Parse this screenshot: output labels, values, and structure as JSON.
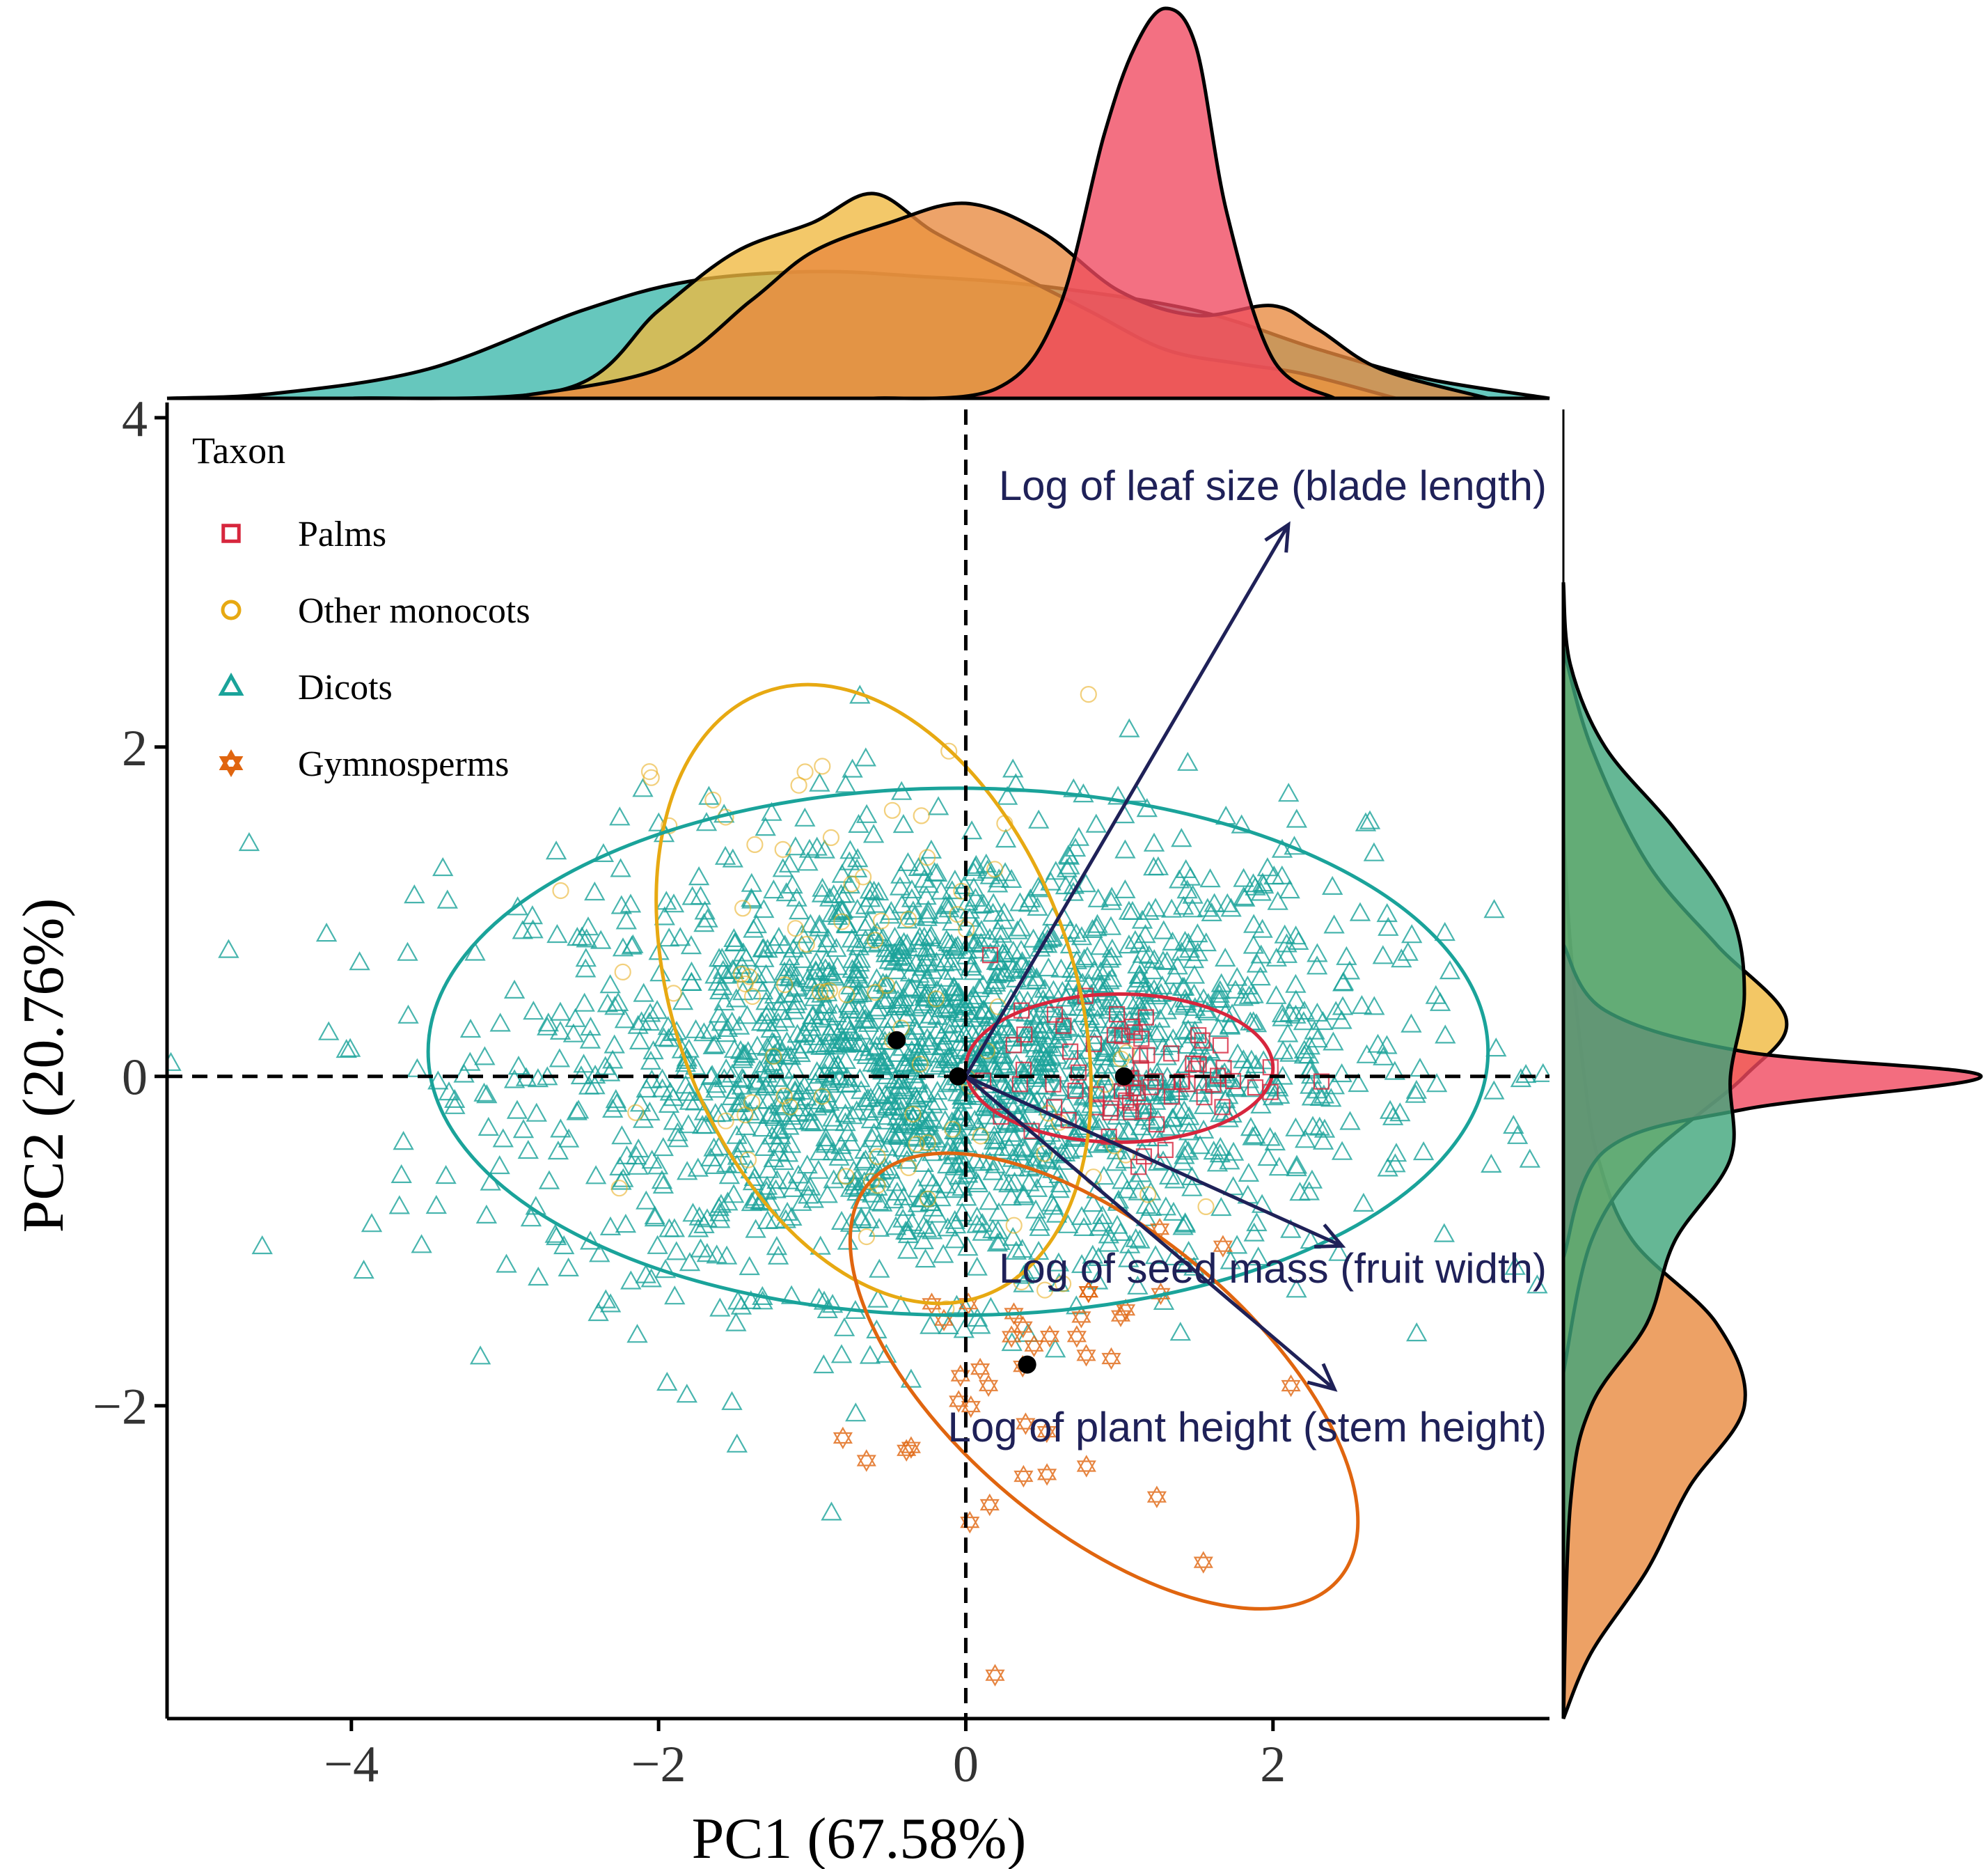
{
  "chart_data": {
    "type": "scatter",
    "subtype": "pca-biplot-with-marginal-densities",
    "xlabel": "PC1 (67.58%)",
    "ylabel": "PC2 (20.76%)",
    "xlim": [
      -5.2,
      3.8
    ],
    "ylim": [
      -3.9,
      4.05
    ],
    "x_ticks": [
      -4,
      -2,
      0,
      2
    ],
    "y_ticks": [
      -2,
      0,
      2,
      4
    ],
    "x_tick_labels": [
      "−4",
      "−2",
      "0",
      "2"
    ],
    "y_tick_labels": [
      "−2",
      "0",
      "2",
      "4"
    ],
    "reference_lines": {
      "x": 0,
      "y": 0,
      "style": "dashed"
    },
    "legend": {
      "title": "Taxon",
      "placement": "top-left",
      "entries": [
        {
          "label": "Palms",
          "marker": "square"
        },
        {
          "label": "Other monocots",
          "marker": "circle"
        },
        {
          "label": "Dicots",
          "marker": "triangle"
        },
        {
          "label": "Gymnosperms",
          "marker": "hexagram"
        }
      ]
    },
    "series": [
      {
        "name": "Palms",
        "color": "#D7263D",
        "fill": "#F0485F",
        "centroid": [
          1.03,
          0.0
        ],
        "ellipse": {
          "center": [
            1.0,
            0.05
          ],
          "rx": 1.0,
          "ry": 0.45,
          "angle_deg": 0
        },
        "density_x": [
          [
            -0.6,
            0.0
          ],
          [
            0.2,
            0.1
          ],
          [
            0.6,
            0.9
          ],
          [
            0.9,
            2.7
          ],
          [
            1.1,
            3.6
          ],
          [
            1.3,
            4.0
          ],
          [
            1.5,
            3.6
          ],
          [
            1.7,
            1.9
          ],
          [
            2.0,
            0.4
          ],
          [
            2.4,
            0.0
          ]
        ],
        "density_y": [
          [
            -1.1,
            0.0
          ],
          [
            -0.45,
            0.3
          ],
          [
            -0.2,
            1.3
          ],
          [
            0.0,
            3.0
          ],
          [
            0.15,
            1.3
          ],
          [
            0.4,
            0.3
          ],
          [
            0.8,
            0.0
          ]
        ],
        "n_points": 70
      },
      {
        "name": "Other monocots",
        "color": "#E7A912",
        "fill": "#F0B93F",
        "centroid": [
          -0.45,
          0.22
        ],
        "ellipse": {
          "center": [
            -0.6,
            0.5
          ],
          "rx": 1.3,
          "ry": 1.95,
          "angle_deg": -20
        },
        "density_x": [
          [
            -4.0,
            0.0
          ],
          [
            -2.6,
            0.1
          ],
          [
            -2.0,
            0.9
          ],
          [
            -1.5,
            1.5
          ],
          [
            -1.0,
            1.8
          ],
          [
            -0.6,
            2.1
          ],
          [
            -0.2,
            1.7
          ],
          [
            0.3,
            1.3
          ],
          [
            0.8,
            0.9
          ],
          [
            1.3,
            0.5
          ],
          [
            1.8,
            0.35
          ],
          [
            2.2,
            0.25
          ],
          [
            2.8,
            0.0
          ]
        ],
        "density_y": [
          [
            -1.8,
            0.0
          ],
          [
            -1.0,
            0.2
          ],
          [
            -0.5,
            0.6
          ],
          [
            0.0,
            1.3
          ],
          [
            0.35,
            1.6
          ],
          [
            0.8,
            1.1
          ],
          [
            1.3,
            0.6
          ],
          [
            2.0,
            0.2
          ],
          [
            2.6,
            0.0
          ]
        ],
        "n_points": 90
      },
      {
        "name": "Dicots",
        "color": "#1AA39A",
        "fill": "#3BB7AA",
        "centroid": [
          -0.05,
          0.0
        ],
        "ellipse": {
          "center": [
            -0.05,
            0.15
          ],
          "rx": 3.45,
          "ry": 1.6,
          "angle_deg": 0
        },
        "density_x": [
          [
            -5.2,
            0.0
          ],
          [
            -4.5,
            0.05
          ],
          [
            -3.5,
            0.3
          ],
          [
            -2.5,
            0.9
          ],
          [
            -1.8,
            1.2
          ],
          [
            -1.0,
            1.3
          ],
          [
            -0.3,
            1.25
          ],
          [
            0.5,
            1.15
          ],
          [
            1.5,
            0.9
          ],
          [
            2.3,
            0.5
          ],
          [
            3.0,
            0.2
          ],
          [
            3.8,
            0.0
          ]
        ],
        "density_y": [
          [
            -3.9,
            0.0
          ],
          [
            -2.6,
            0.05
          ],
          [
            -2.0,
            0.2
          ],
          [
            -1.5,
            0.6
          ],
          [
            -1.0,
            0.8
          ],
          [
            -0.5,
            1.2
          ],
          [
            0.0,
            1.2
          ],
          [
            0.5,
            1.3
          ],
          [
            1.0,
            1.2
          ],
          [
            1.5,
            0.8
          ],
          [
            2.0,
            0.3
          ],
          [
            2.5,
            0.05
          ],
          [
            3.0,
            0.0
          ]
        ],
        "n_points": 2000
      },
      {
        "name": "Gymnosperms",
        "color": "#E0650F",
        "fill": "#E8893F",
        "centroid": [
          0.4,
          -1.75
        ],
        "ellipse": {
          "center": [
            0.9,
            -1.85
          ],
          "rx": 2.0,
          "ry": 0.9,
          "angle_deg": 40
        },
        "density_x": [
          [
            -3.0,
            0.0
          ],
          [
            -2.0,
            0.3
          ],
          [
            -1.4,
            1.0
          ],
          [
            -1.0,
            1.5
          ],
          [
            -0.5,
            1.8
          ],
          [
            0.0,
            2.0
          ],
          [
            0.5,
            1.7
          ],
          [
            1.0,
            1.1
          ],
          [
            1.5,
            0.85
          ],
          [
            2.0,
            0.95
          ],
          [
            2.3,
            0.7
          ],
          [
            2.7,
            0.3
          ],
          [
            3.4,
            0.0
          ]
        ],
        "density_y": [
          [
            -3.9,
            0.0
          ],
          [
            -3.5,
            0.2
          ],
          [
            -3.0,
            0.6
          ],
          [
            -2.5,
            0.9
          ],
          [
            -2.0,
            1.3
          ],
          [
            -1.5,
            1.1
          ],
          [
            -1.0,
            0.5
          ],
          [
            -0.5,
            0.25
          ],
          [
            0.0,
            0.15
          ],
          [
            0.8,
            0.05
          ],
          [
            1.5,
            0.0
          ]
        ],
        "n_points": 40
      }
    ],
    "loadings": [
      {
        "label": "Log of leaf size (blade length)",
        "end": [
          2.1,
          3.35
        ]
      },
      {
        "label": "Log of seed mass (fruit width)",
        "end": [
          2.45,
          -1.03
        ]
      },
      {
        "label": "Log of plant height (stem height)",
        "end": [
          2.4,
          -1.9
        ]
      }
    ],
    "loading_color": "#1F2158"
  }
}
